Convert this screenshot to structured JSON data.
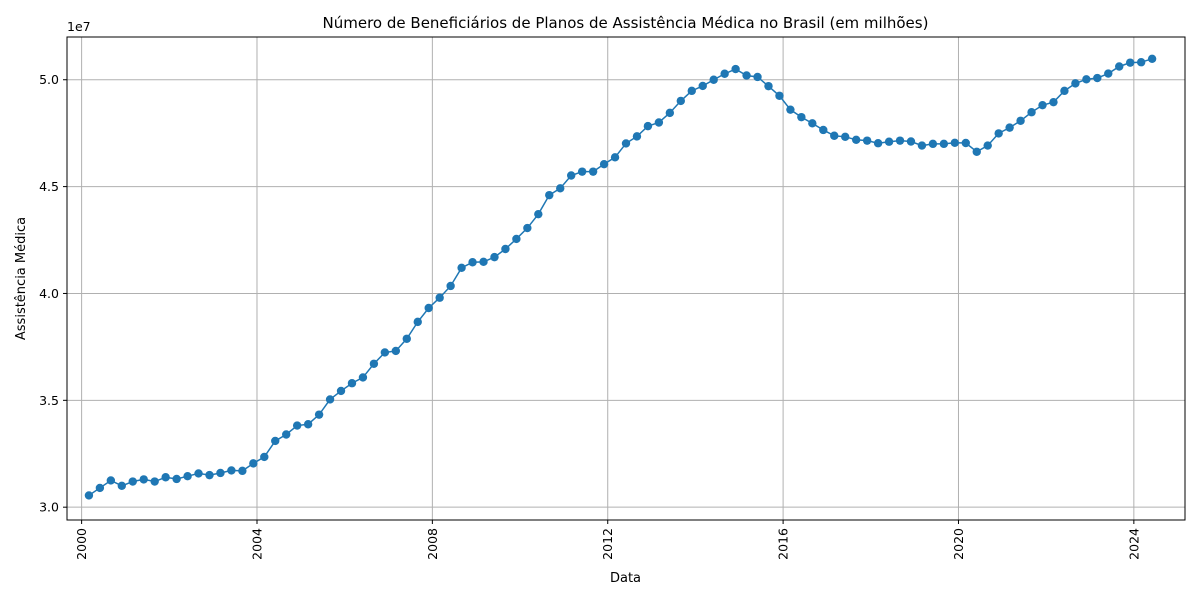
{
  "chart_data": {
    "type": "line",
    "title": "Número de Beneficiários de Planos de Assistência Médica no Brasil (em milhões)",
    "xlabel": "Data",
    "ylabel": "Assistência Médica",
    "y_offset_label": "1e7",
    "xlim": [
      "1999-09",
      "2025-03"
    ],
    "ylim": [
      29400000,
      52000000
    ],
    "x_ticks": [
      "2000",
      "2004",
      "2008",
      "2012",
      "2016",
      "2020",
      "2024"
    ],
    "y_ticks": [
      {
        "value": 30000000,
        "label": "3.0"
      },
      {
        "value": 35000000,
        "label": "3.5"
      },
      {
        "value": 40000000,
        "label": "4.0"
      },
      {
        "value": 45000000,
        "label": "4.5"
      },
      {
        "value": 50000000,
        "label": "5.0"
      }
    ],
    "grid": true,
    "colors": {
      "series": "#1f77b4"
    },
    "series": [
      {
        "marker": "circle",
        "x": [
          "2000-03",
          "2000-06",
          "2000-09",
          "2000-12",
          "2001-03",
          "2001-06",
          "2001-09",
          "2001-12",
          "2002-03",
          "2002-06",
          "2002-09",
          "2002-12",
          "2003-03",
          "2003-06",
          "2003-09",
          "2003-12",
          "2004-03",
          "2004-06",
          "2004-09",
          "2004-12",
          "2005-03",
          "2005-06",
          "2005-09",
          "2005-12",
          "2006-03",
          "2006-06",
          "2006-09",
          "2006-12",
          "2007-03",
          "2007-06",
          "2007-09",
          "2007-12",
          "2008-03",
          "2008-06",
          "2008-09",
          "2008-12",
          "2009-03",
          "2009-06",
          "2009-09",
          "2009-12",
          "2010-03",
          "2010-06",
          "2010-09",
          "2010-12",
          "2011-03",
          "2011-06",
          "2011-09",
          "2011-12",
          "2012-03",
          "2012-06",
          "2012-09",
          "2012-12",
          "2013-03",
          "2013-06",
          "2013-09",
          "2013-12",
          "2014-03",
          "2014-06",
          "2014-09",
          "2014-12",
          "2015-03",
          "2015-06",
          "2015-09",
          "2015-12",
          "2016-03",
          "2016-06",
          "2016-09",
          "2016-12",
          "2017-03",
          "2017-06",
          "2017-09",
          "2017-12",
          "2018-03",
          "2018-06",
          "2018-09",
          "2018-12",
          "2019-03",
          "2019-06",
          "2019-09",
          "2019-12",
          "2020-03",
          "2020-06",
          "2020-09",
          "2020-12",
          "2021-03",
          "2021-06",
          "2021-09",
          "2021-12",
          "2022-03",
          "2022-06",
          "2022-09",
          "2022-12",
          "2023-03",
          "2023-06",
          "2023-09",
          "2023-12",
          "2024-03",
          "2024-06"
        ],
        "y": [
          30550000,
          30900000,
          31250000,
          31000000,
          31200000,
          31300000,
          31200000,
          31400000,
          31320000,
          31450000,
          31580000,
          31500000,
          31600000,
          31720000,
          31700000,
          32050000,
          32350000,
          33100000,
          33400000,
          33820000,
          33880000,
          34330000,
          35040000,
          35440000,
          35800000,
          36070000,
          36710000,
          37240000,
          37310000,
          37880000,
          38670000,
          39320000,
          39800000,
          40350000,
          41200000,
          41460000,
          41480000,
          41700000,
          42080000,
          42550000,
          43060000,
          43710000,
          44600000,
          44920000,
          45520000,
          45700000,
          45700000,
          46050000,
          46370000,
          47020000,
          47350000,
          47830000,
          48000000,
          48450000,
          49010000,
          49480000,
          49710000,
          50000000,
          50280000,
          50500000,
          50200000,
          50130000,
          49700000,
          49250000,
          48600000,
          48250000,
          47960000,
          47650000,
          47380000,
          47330000,
          47190000,
          47150000,
          47030000,
          47100000,
          47150000,
          47110000,
          46920000,
          47000000,
          47000000,
          47050000,
          47040000,
          46630000,
          46920000,
          47490000,
          47760000,
          48080000,
          48480000,
          48810000,
          48950000,
          49480000,
          49830000,
          50020000,
          50080000,
          50290000,
          50620000,
          50800000,
          50820000,
          50980000
        ]
      }
    ]
  }
}
